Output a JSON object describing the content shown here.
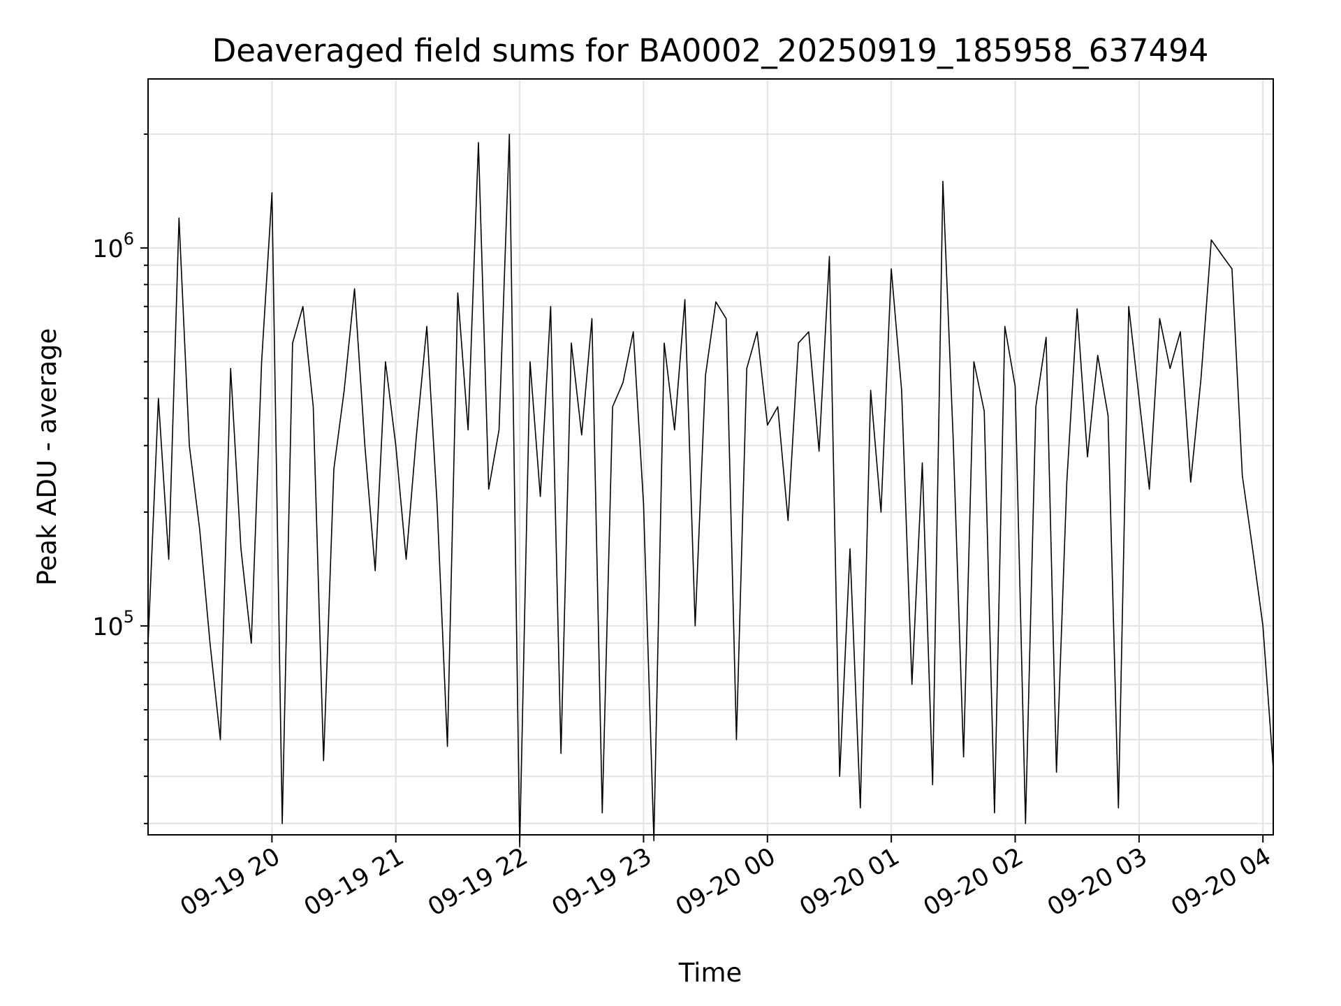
{
  "chart_data": {
    "type": "line",
    "title": "Deaveraged field sums for BA0002_20250919_185958_637494",
    "xlabel": "Time",
    "ylabel": "Peak ADU - average",
    "yscale": "log",
    "ylim": [
      28000,
      2800000
    ],
    "xlim": [
      "2025-09-19 19:00",
      "2025-09-20 04:05"
    ],
    "grid": true,
    "line_color": "#000000",
    "x_ticks": [
      {
        "at": "2025-09-19 20:00",
        "label": "09-19 20"
      },
      {
        "at": "2025-09-19 21:00",
        "label": "09-19 21"
      },
      {
        "at": "2025-09-19 22:00",
        "label": "09-19 22"
      },
      {
        "at": "2025-09-19 23:00",
        "label": "09-19 23"
      },
      {
        "at": "2025-09-20 00:00",
        "label": "09-20 00"
      },
      {
        "at": "2025-09-20 01:00",
        "label": "09-20 01"
      },
      {
        "at": "2025-09-20 02:00",
        "label": "09-20 02"
      },
      {
        "at": "2025-09-20 03:00",
        "label": "09-20 03"
      },
      {
        "at": "2025-09-20 04:00",
        "label": "09-20 04"
      }
    ],
    "y_ticks": [
      {
        "value": 100000,
        "base": "10",
        "exp": "5"
      },
      {
        "value": 1000000,
        "base": "10",
        "exp": "6"
      }
    ],
    "series": [
      {
        "x": [
          "2025-09-19 19:00",
          "2025-09-19 19:05",
          "2025-09-19 19:10",
          "2025-09-19 19:15",
          "2025-09-19 19:20",
          "2025-09-19 19:25",
          "2025-09-19 19:30",
          "2025-09-19 19:35",
          "2025-09-19 19:40",
          "2025-09-19 19:45",
          "2025-09-19 19:50",
          "2025-09-19 19:55",
          "2025-09-19 20:00",
          "2025-09-19 20:05",
          "2025-09-19 20:10",
          "2025-09-19 20:15",
          "2025-09-19 20:20",
          "2025-09-19 20:25",
          "2025-09-19 20:30",
          "2025-09-19 20:35",
          "2025-09-19 20:40",
          "2025-09-19 20:45",
          "2025-09-19 20:50",
          "2025-09-19 20:55",
          "2025-09-19 21:00",
          "2025-09-19 21:05",
          "2025-09-19 21:10",
          "2025-09-19 21:15",
          "2025-09-19 21:20",
          "2025-09-19 21:25",
          "2025-09-19 21:30",
          "2025-09-19 21:35",
          "2025-09-19 21:40",
          "2025-09-19 21:45",
          "2025-09-19 21:50",
          "2025-09-19 21:55",
          "2025-09-19 22:00",
          "2025-09-19 22:05",
          "2025-09-19 22:10",
          "2025-09-19 22:15",
          "2025-09-19 22:20",
          "2025-09-19 22:25",
          "2025-09-19 22:30",
          "2025-09-19 22:35",
          "2025-09-19 22:40",
          "2025-09-19 22:45",
          "2025-09-19 22:50",
          "2025-09-19 22:55",
          "2025-09-19 23:00",
          "2025-09-19 23:05",
          "2025-09-19 23:10",
          "2025-09-19 23:15",
          "2025-09-19 23:20",
          "2025-09-19 23:25",
          "2025-09-19 23:30",
          "2025-09-19 23:35",
          "2025-09-19 23:40",
          "2025-09-19 23:45",
          "2025-09-19 23:50",
          "2025-09-19 23:55",
          "2025-09-20 00:00",
          "2025-09-20 00:05",
          "2025-09-20 00:10",
          "2025-09-20 00:15",
          "2025-09-20 00:20",
          "2025-09-20 00:25",
          "2025-09-20 00:30",
          "2025-09-20 00:35",
          "2025-09-20 00:40",
          "2025-09-20 00:45",
          "2025-09-20 00:50",
          "2025-09-20 00:55",
          "2025-09-20 01:00",
          "2025-09-20 01:05",
          "2025-09-20 01:10",
          "2025-09-20 01:15",
          "2025-09-20 01:20",
          "2025-09-20 01:25",
          "2025-09-20 01:30",
          "2025-09-20 01:35",
          "2025-09-20 01:40",
          "2025-09-20 01:45",
          "2025-09-20 01:50",
          "2025-09-20 01:55",
          "2025-09-20 02:00",
          "2025-09-20 02:05",
          "2025-09-20 02:10",
          "2025-09-20 02:15",
          "2025-09-20 02:20",
          "2025-09-20 02:25",
          "2025-09-20 02:30",
          "2025-09-20 02:35",
          "2025-09-20 02:40",
          "2025-09-20 02:45",
          "2025-09-20 02:50",
          "2025-09-20 02:55",
          "2025-09-20 03:00",
          "2025-09-20 03:05",
          "2025-09-20 03:10",
          "2025-09-20 03:15",
          "2025-09-20 03:20",
          "2025-09-20 03:25",
          "2025-09-20 03:30",
          "2025-09-20 03:35",
          "2025-09-20 03:40",
          "2025-09-20 03:45",
          "2025-09-20 03:50",
          "2025-09-20 03:55",
          "2025-09-20 04:00",
          "2025-09-20 04:05"
        ],
        "y": [
          90000,
          400000,
          150000,
          1200000,
          300000,
          180000,
          90000,
          50000,
          480000,
          160000,
          90000,
          500000,
          1400000,
          30000,
          560000,
          700000,
          380000,
          44000,
          260000,
          420000,
          780000,
          300000,
          140000,
          500000,
          300000,
          150000,
          320000,
          620000,
          210000,
          48000,
          760000,
          330000,
          1900000,
          230000,
          330000,
          2000000,
          26000,
          500000,
          220000,
          700000,
          46000,
          560000,
          320000,
          650000,
          32000,
          380000,
          440000,
          600000,
          210000,
          27000,
          560000,
          330000,
          730000,
          100000,
          460000,
          720000,
          650000,
          50000,
          480000,
          600000,
          340000,
          380000,
          190000,
          560000,
          600000,
          290000,
          950000,
          40000,
          160000,
          33000,
          420000,
          200000,
          880000,
          420000,
          70000,
          270000,
          38000,
          1500000,
          310000,
          45000,
          500000,
          370000,
          32000,
          620000,
          430000,
          30000,
          380000,
          580000,
          41000,
          240000,
          690000,
          280000,
          520000,
          360000,
          33000,
          700000,
          400000,
          230000,
          650000,
          480000,
          600000,
          240000,
          450000,
          1050000,
          960000,
          880000,
          250000,
          160000,
          100000,
          42000
        ]
      }
    ]
  }
}
